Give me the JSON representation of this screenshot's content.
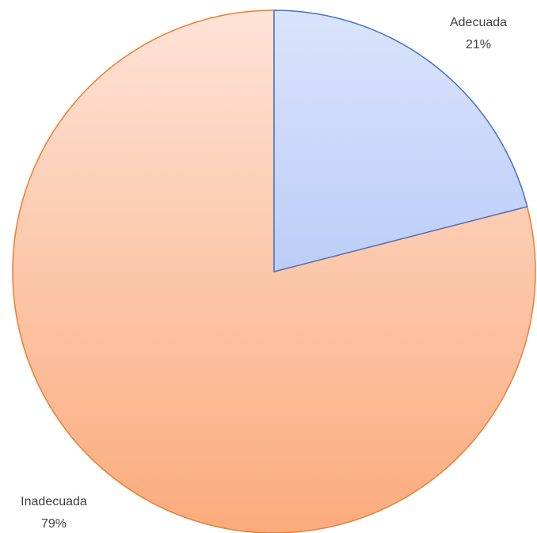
{
  "chart_data": {
    "type": "pie",
    "categories": [
      "Adecuada",
      "Inadecuada"
    ],
    "values": [
      21,
      79
    ],
    "unit": "%",
    "data_labels": [
      {
        "name": "Adecuada",
        "value_text": "21%"
      },
      {
        "name": "Inadecuada",
        "value_text": "79%"
      }
    ],
    "start_angle": "12 o'clock",
    "direction": "clockwise",
    "legend": "none",
    "colors": {
      "Adecuada": {
        "fill_top": "#dae3fb",
        "fill_bottom": "#9db8f5",
        "stroke": "#4472c4"
      },
      "Inadecuada": {
        "fill_top": "#fde3d7",
        "fill_bottom": "#fbab7c",
        "stroke": "#ed7d31"
      }
    }
  }
}
